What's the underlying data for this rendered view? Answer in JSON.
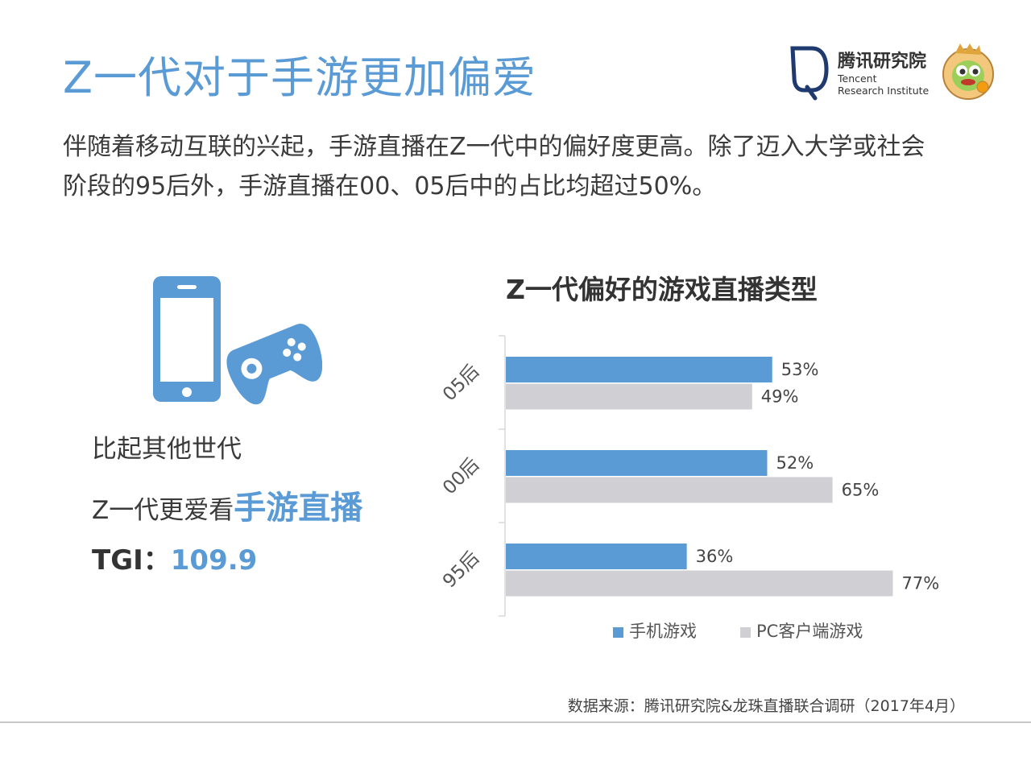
{
  "title": "Z一代对于手游更加偏爱",
  "logo": {
    "name": "腾讯研究院",
    "en_line1": "Tencent",
    "en_line2": "Research Institute"
  },
  "intro_line1": "伴随着移动互联的兴起，手游直播在Z一代中的偏好度更高。除了迈入大学或社会",
  "intro_line2": "阶段的95后外，手游直播在00、05后中的占比均超过50%。",
  "left_panel": {
    "compare_text": "比起其他世代",
    "prefer_prefix": "Z一代更爱看",
    "prefer_highlight": "手游直播",
    "tgi_label": "TGI：",
    "tgi_value": "109.9"
  },
  "chart_data": {
    "type": "bar",
    "orientation": "horizontal",
    "title": "Z一代偏好的游戏直播类型",
    "categories": [
      "05后",
      "00后",
      "95后"
    ],
    "series": [
      {
        "name": "手机游戏",
        "values": [
          53,
          52,
          36
        ],
        "color": "#5b9bd5"
      },
      {
        "name": "PC客户端游戏",
        "values": [
          49,
          65,
          77
        ],
        "color": "#d0d0d4"
      }
    ],
    "unit": "%",
    "xlim": [
      0,
      100
    ],
    "legend_position": "bottom",
    "grid": false
  },
  "source": "数据来源：腾讯研究院&龙珠直播联合调研（2017年4月）",
  "colors": {
    "accent": "#5b9bd5",
    "secondary": "#d0d0d4",
    "text": "#3a3a3a"
  }
}
